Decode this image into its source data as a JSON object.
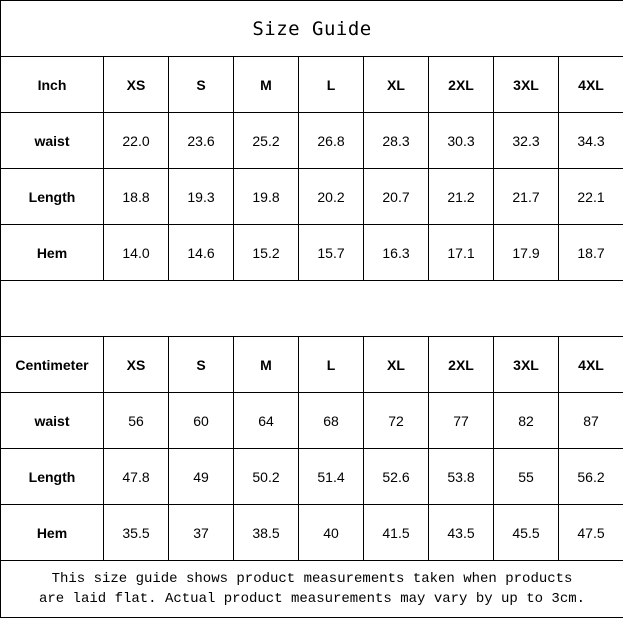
{
  "title": "Size Guide",
  "sizes": [
    "XS",
    "S",
    "M",
    "L",
    "XL",
    "2XL",
    "3XL",
    "4XL"
  ],
  "inch_table": {
    "unit_label": "Inch",
    "rows": [
      {
        "label": "waist",
        "values": [
          "22.0",
          "23.6",
          "25.2",
          "26.8",
          "28.3",
          "30.3",
          "32.3",
          "34.3"
        ]
      },
      {
        "label": "Length",
        "values": [
          "18.8",
          "19.3",
          "19.8",
          "20.2",
          "20.7",
          "21.2",
          "21.7",
          "22.1"
        ]
      },
      {
        "label": "Hem",
        "values": [
          "14.0",
          "14.6",
          "15.2",
          "15.7",
          "16.3",
          "17.1",
          "17.9",
          "18.7"
        ]
      }
    ]
  },
  "cm_table": {
    "unit_label": "Centimeter",
    "rows": [
      {
        "label": "waist",
        "values": [
          "56",
          "60",
          "64",
          "68",
          "72",
          "77",
          "82",
          "87"
        ]
      },
      {
        "label": "Length",
        "values": [
          "47.8",
          "49",
          "50.2",
          "51.4",
          "52.6",
          "53.8",
          "55",
          "56.2"
        ]
      },
      {
        "label": "Hem",
        "values": [
          "35.5",
          "37",
          "38.5",
          "40",
          "41.5",
          "43.5",
          "45.5",
          "47.5"
        ]
      }
    ]
  },
  "note": {
    "line1": "This size guide shows product measurements taken when products",
    "line2": "are laid flat. Actual product measurements may vary by up to 3cm."
  }
}
